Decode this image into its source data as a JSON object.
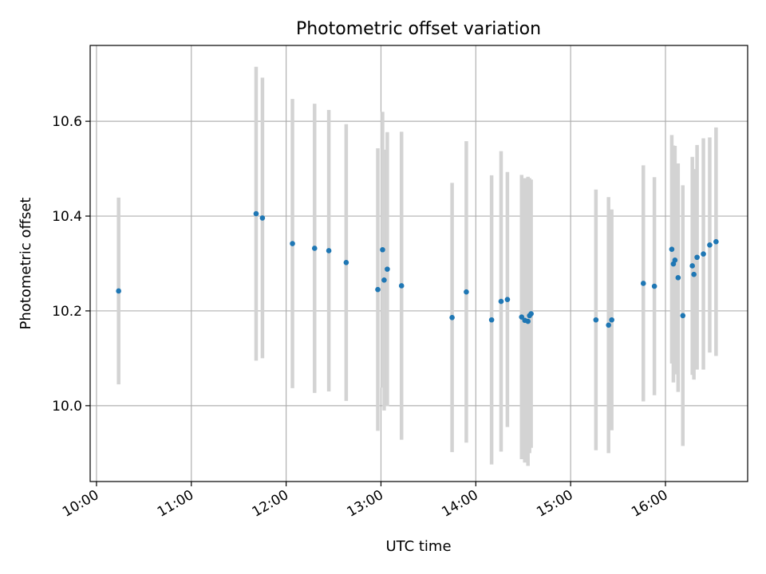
{
  "chart_data": {
    "type": "scatter",
    "title": "Photometric offset variation",
    "xlabel": "UTC time",
    "ylabel": "Photometric offset",
    "x_axis_type": "time",
    "xlim": [
      "09:56",
      "16:52"
    ],
    "ylim": [
      9.84,
      10.76
    ],
    "x_ticks": [
      "10:00",
      "11:00",
      "12:00",
      "13:00",
      "14:00",
      "15:00",
      "16:00"
    ],
    "y_ticks": [
      10.0,
      10.2,
      10.4,
      10.6
    ],
    "y_tick_labels": [
      "10.0",
      "10.2",
      "10.4",
      "10.6"
    ],
    "grid": true,
    "legend": false,
    "marker_color": "#1f77b4",
    "errorbar_color": "#d3d3d3",
    "points": [
      {
        "x": "10:14",
        "y": 10.242,
        "yerr": 0.197
      },
      {
        "x": "11:41",
        "y": 10.405,
        "yerr": 0.31
      },
      {
        "x": "11:45",
        "y": 10.396,
        "yerr": 0.296
      },
      {
        "x": "12:04",
        "y": 10.342,
        "yerr": 0.305
      },
      {
        "x": "12:18",
        "y": 10.332,
        "yerr": 0.305
      },
      {
        "x": "12:27",
        "y": 10.327,
        "yerr": 0.297
      },
      {
        "x": "12:38",
        "y": 10.302,
        "yerr": 0.292
      },
      {
        "x": "12:58",
        "y": 10.245,
        "yerr": 0.298
      },
      {
        "x": "13:01",
        "y": 10.329,
        "yerr": 0.291
      },
      {
        "x": "13:02",
        "y": 10.265,
        "yerr": 0.275
      },
      {
        "x": "13:04",
        "y": 10.288,
        "yerr": 0.289
      },
      {
        "x": "13:13",
        "y": 10.253,
        "yerr": 0.325
      },
      {
        "x": "13:45",
        "y": 10.186,
        "yerr": 0.284
      },
      {
        "x": "13:54",
        "y": 10.24,
        "yerr": 0.318
      },
      {
        "x": "14:10",
        "y": 10.181,
        "yerr": 0.305
      },
      {
        "x": "14:16",
        "y": 10.22,
        "yerr": 0.317
      },
      {
        "x": "14:20",
        "y": 10.224,
        "yerr": 0.269
      },
      {
        "x": "14:29",
        "y": 10.187,
        "yerr": 0.3
      },
      {
        "x": "14:31",
        "y": 10.18,
        "yerr": 0.3
      },
      {
        "x": "14:33",
        "y": 10.178,
        "yerr": 0.305
      },
      {
        "x": "14:34",
        "y": 10.19,
        "yerr": 0.29
      },
      {
        "x": "14:35",
        "y": 10.194,
        "yerr": 0.283
      },
      {
        "x": "15:16",
        "y": 10.181,
        "yerr": 0.275
      },
      {
        "x": "15:24",
        "y": 10.17,
        "yerr": 0.27
      },
      {
        "x": "15:26",
        "y": 10.181,
        "yerr": 0.233
      },
      {
        "x": "15:46",
        "y": 10.258,
        "yerr": 0.249
      },
      {
        "x": "15:53",
        "y": 10.252,
        "yerr": 0.23
      },
      {
        "x": "16:04",
        "y": 10.33,
        "yerr": 0.241
      },
      {
        "x": "16:05",
        "y": 10.299,
        "yerr": 0.25
      },
      {
        "x": "16:06",
        "y": 10.307,
        "yerr": 0.241
      },
      {
        "x": "16:08",
        "y": 10.27,
        "yerr": 0.241
      },
      {
        "x": "16:11",
        "y": 10.19,
        "yerr": 0.275
      },
      {
        "x": "16:17",
        "y": 10.295,
        "yerr": 0.23
      },
      {
        "x": "16:18",
        "y": 10.277,
        "yerr": 0.222
      },
      {
        "x": "16:20",
        "y": 10.313,
        "yerr": 0.237
      },
      {
        "x": "16:24",
        "y": 10.32,
        "yerr": 0.244
      },
      {
        "x": "16:28",
        "y": 10.339,
        "yerr": 0.227
      },
      {
        "x": "16:32",
        "y": 10.346,
        "yerr": 0.241
      }
    ]
  }
}
